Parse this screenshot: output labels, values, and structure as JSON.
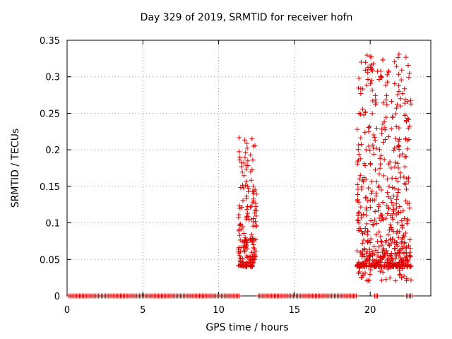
{
  "chart_data": {
    "type": "scatter",
    "title": "Day 329 of 2019, SRMTID for receiver hofn",
    "xlabel": "GPS time / hours",
    "ylabel": "SRMTID / TECUs",
    "xlim": [
      0,
      24
    ],
    "ylim": [
      0,
      0.35
    ],
    "xticks": [
      "0",
      "5",
      "10",
      "15",
      "20"
    ],
    "yticks": [
      "0",
      "0.05",
      "0.1",
      "0.15",
      "0.2",
      "0.25",
      "0.3",
      "0.35"
    ],
    "grid": true,
    "marker": "+",
    "color": "#e00000",
    "series": [
      {
        "name": "SRMTID",
        "clusters": [
          {
            "x": [
              11.3,
              12.5
            ],
            "y": [
              0.04,
              0.22
            ],
            "count": 180
          },
          {
            "x": [
              19.1,
              22.7
            ],
            "y": [
              0.02,
              0.33
            ],
            "count": 620
          }
        ],
        "notable_points": [
          {
            "x": 21.9,
            "y": 0.331
          },
          {
            "x": 21.9,
            "y": 0.28
          },
          {
            "x": 22.0,
            "y": 0.27
          },
          {
            "x": 22.0,
            "y": 0.26
          },
          {
            "x": 12.2,
            "y": 0.215
          },
          {
            "x": 12.3,
            "y": 0.205
          },
          {
            "x": 11.4,
            "y": 0.19
          },
          {
            "x": 19.9,
            "y": 0.225
          },
          {
            "x": 19.9,
            "y": 0.205
          },
          {
            "x": 21.9,
            "y": 0.23
          },
          {
            "x": 21.9,
            "y": 0.205
          }
        ],
        "zero_baseline": {
          "ranges": [
            [
              0.1,
              11.4
            ],
            [
              12.6,
              19.1
            ],
            [
              20.3,
              20.5
            ],
            [
              22.4,
              22.8
            ]
          ],
          "y": 0
        }
      }
    ]
  }
}
